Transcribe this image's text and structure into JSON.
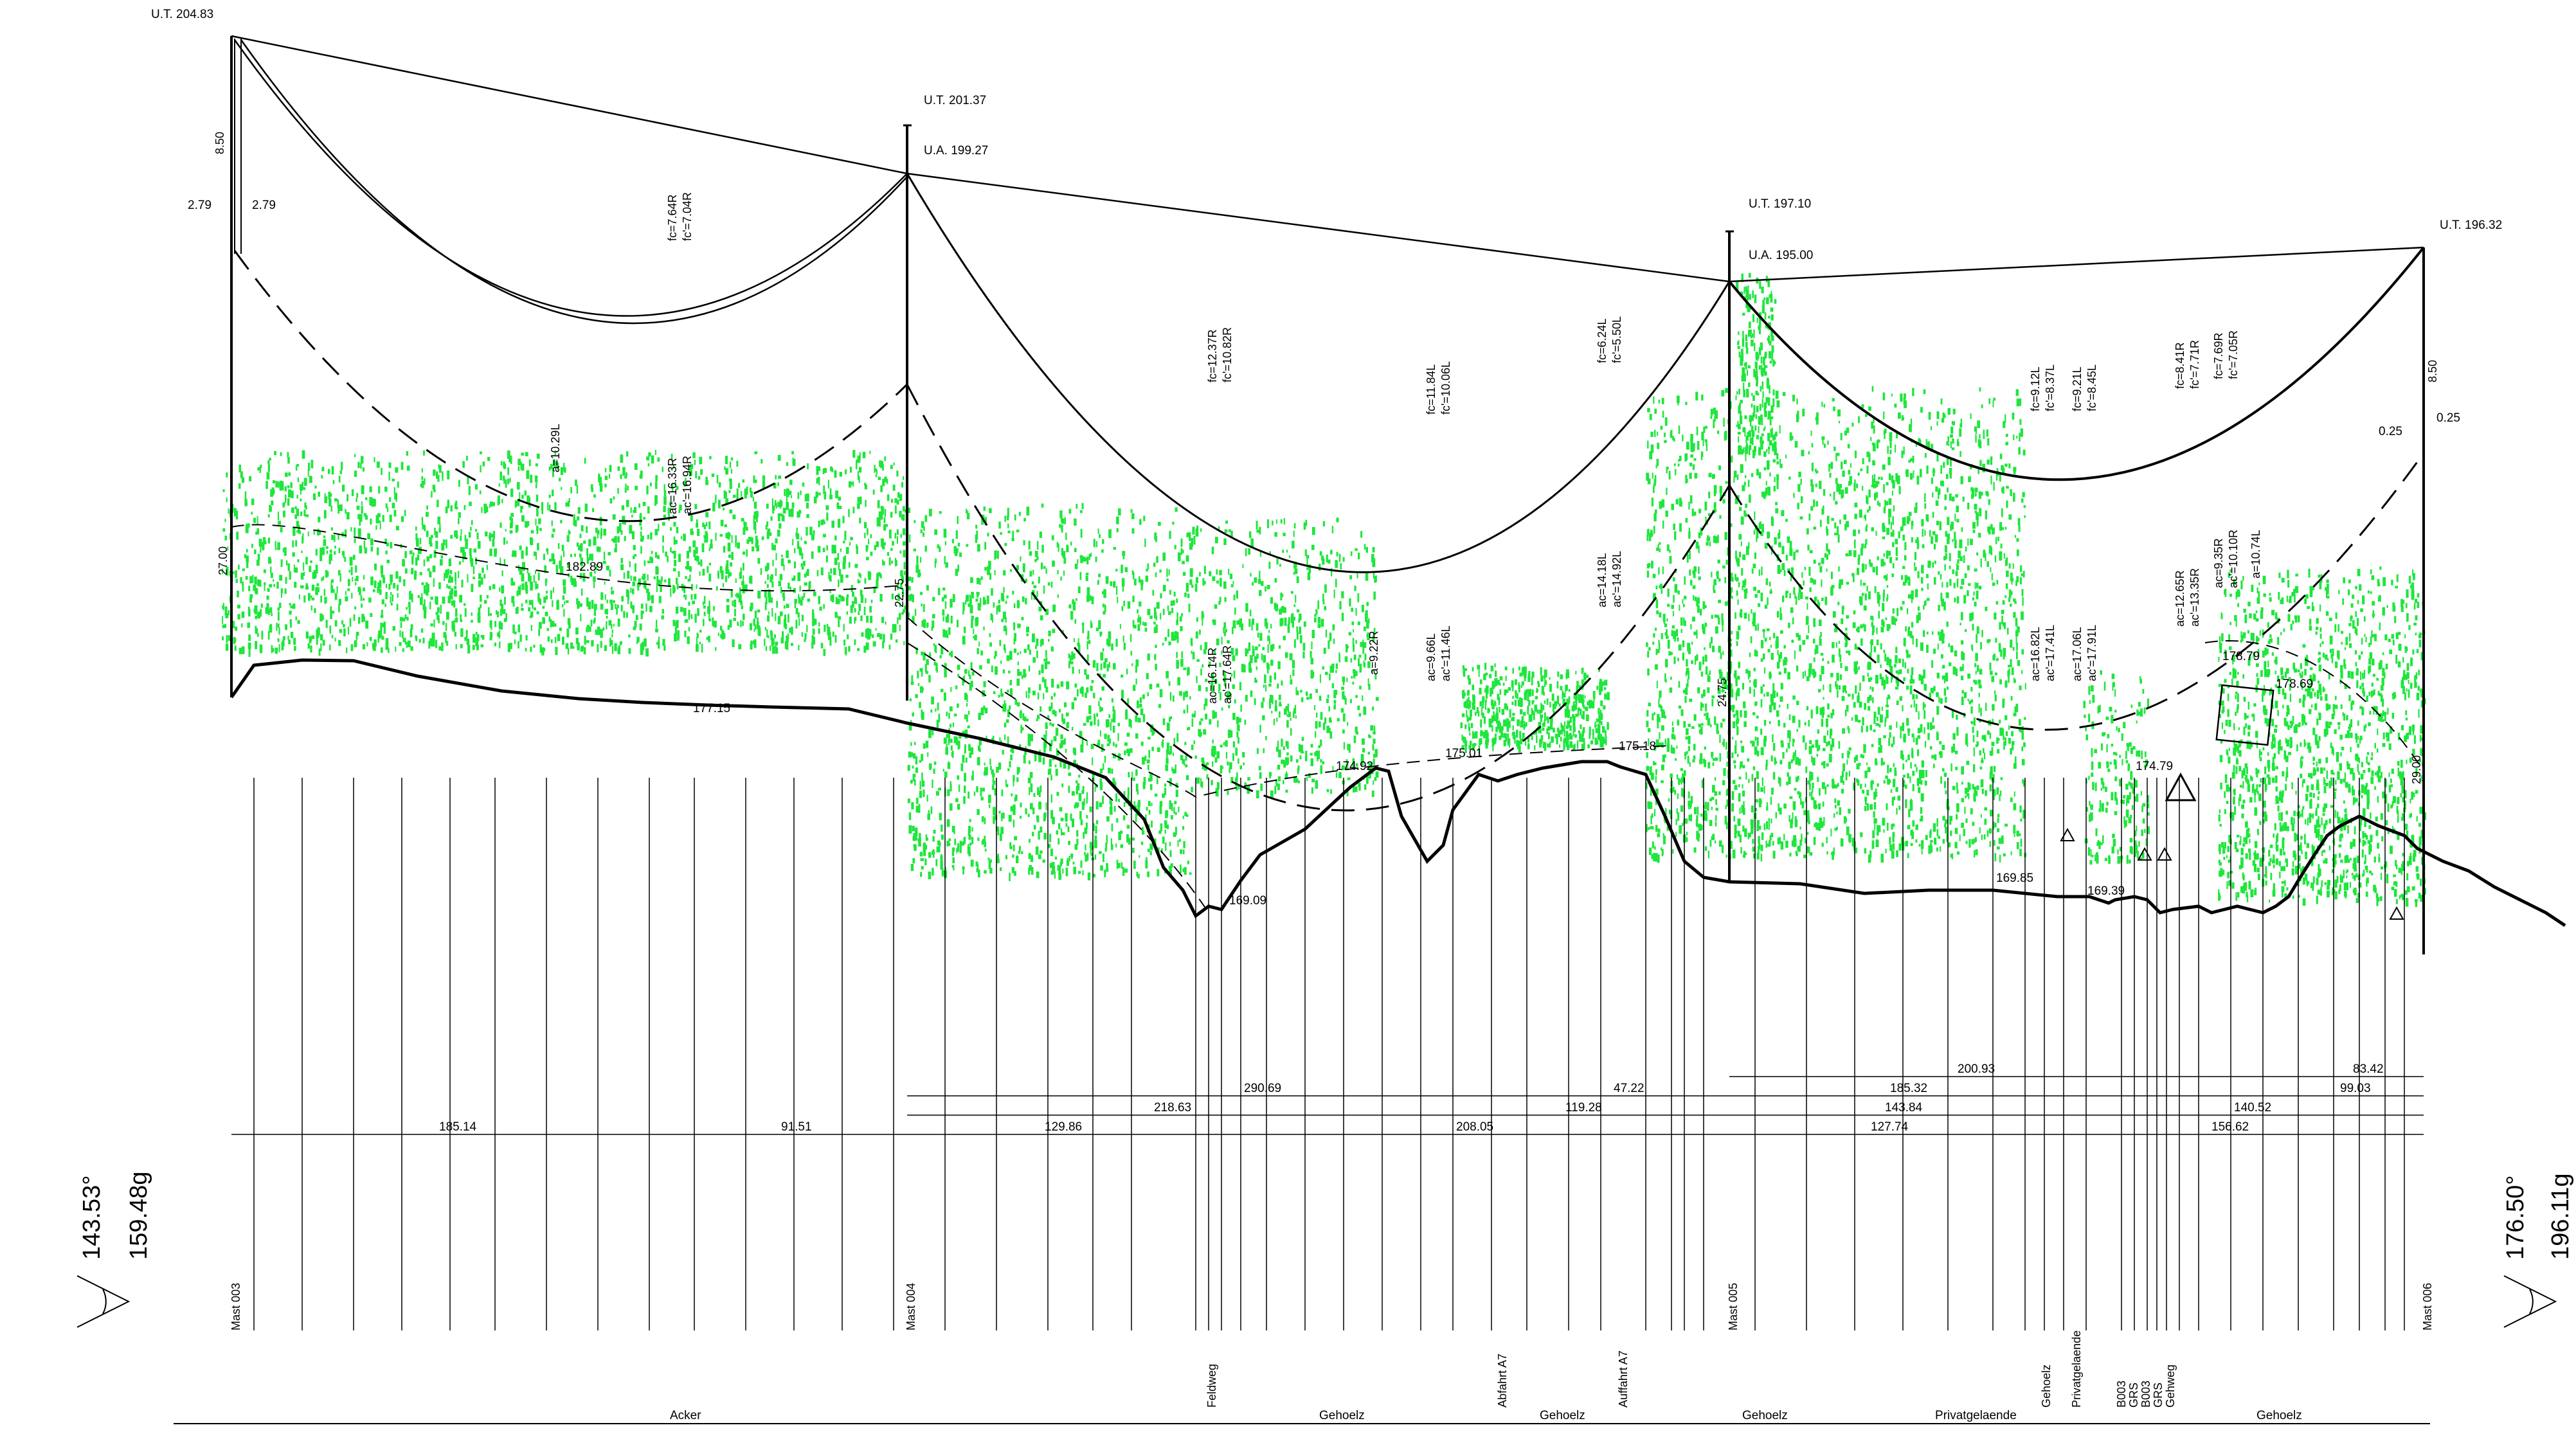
{
  "masts": [
    {
      "name": "Mast 003",
      "ut": "U.T. 204.83",
      "ua": "",
      "height": "27.00",
      "side_label": "8.50"
    },
    {
      "name": "Mast 004",
      "ut": "U.T. 201.37",
      "ua": "U.A. 199.27",
      "height": "22.75"
    },
    {
      "name": "Mast 005",
      "ut": "U.T. 197.10",
      "ua": "U.A. 195.00",
      "height": "24.75"
    },
    {
      "name": "Mast 006",
      "ut": "U.T. 196.32",
      "ua": "",
      "height": "29.00",
      "side_label": "8.50"
    }
  ],
  "crossarm_labels": {
    "left_a": "2.79",
    "left_b": "2.79",
    "right_a": "0.25",
    "right_b": "0.25"
  },
  "sag_labels": [
    {
      "fc": "fc=7.64R",
      "fc2": "fc'=7.04R",
      "ac": "ac=16.33R",
      "ac2": "ac'=16.94R"
    },
    {
      "fc": "fc=12.37R",
      "fc2": "fc'=10.82R",
      "ac": "ac=16.14R",
      "ac2": "ac'=17.64R"
    },
    {
      "fc": "fc=11.84L",
      "fc2": "fc'=10.06L",
      "ac": "ac=9.66L",
      "ac2": "ac'=11.46L"
    },
    {
      "fc": "fc=6.24L",
      "fc2": "fc'=5.50L",
      "ac": "ac=14.18L",
      "ac2": "ac'=14.92L"
    },
    {
      "fc": "fc=9.12L",
      "fc2": "fc'=8.37L",
      "ac": "ac=16.82L",
      "ac2": "ac'=17.41L"
    },
    {
      "fc": "fc=9.21L",
      "fc2": "fc'=8.45L",
      "ac": "ac=17.06L",
      "ac2": "ac'=17.91L"
    },
    {
      "fc": "fc=8.41R",
      "fc2": "fc'=7.71R",
      "ac": "ac=12.65R",
      "ac2": "ac'=13.35R"
    },
    {
      "fc": "fc=7.69R",
      "fc2": "fc'=7.05R",
      "ac": "ac=9.35R",
      "ac2": "ac'=10.10R"
    }
  ],
  "clearance_labels": {
    "a1": "a=10.29L",
    "a2": "a=9.22R",
    "a3": "a=10.74L"
  },
  "elevations": [
    "182.89",
    "177.15",
    "169.09",
    "174.92",
    "175.01",
    "175.18",
    "169.85",
    "169.39",
    "174.79",
    "178.79",
    "178.69"
  ],
  "dimensions": {
    "row1": [
      "200.93",
      "83.42"
    ],
    "row2": [
      "290.69",
      "47.22",
      "185.32",
      "99.03"
    ],
    "row3": [
      "218.63",
      "119.28",
      "143.84",
      "140.52"
    ],
    "row4": [
      "185.14",
      "91.51",
      "129.86",
      "208.05",
      "127.74",
      "156.62"
    ]
  },
  "crossings": [
    "Feldweg",
    "Abfahrt A7",
    "Auffahrt A7",
    "Gehoelz",
    "Privatgelaende",
    "B003",
    "GRS",
    "B003",
    "GRS",
    "Gehweg"
  ],
  "land_use": [
    "Acker",
    "Gehoelz",
    "Gehoelz",
    "Gehoelz",
    "Privatgelaende",
    "Gehoelz"
  ],
  "angles": {
    "left_deg": "143.53°",
    "left_gon": "159.48g",
    "right_deg": "176.50°",
    "right_gon": "196.11g"
  },
  "colors": {
    "vegetation": "#1ee63c",
    "line": "#000000"
  }
}
